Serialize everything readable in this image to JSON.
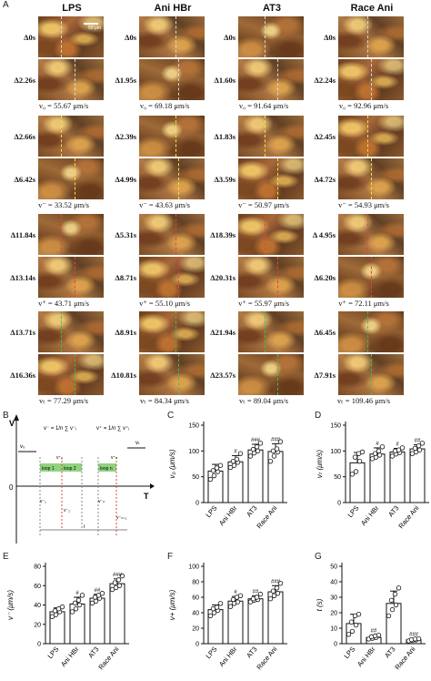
{
  "panel_letters": {
    "A": "A",
    "B": "B",
    "C": "C",
    "D": "D",
    "E": "E",
    "F": "F",
    "G": "G"
  },
  "columns": [
    "LPS",
    "Ani HBr",
    "AT3",
    "Race Ani"
  ],
  "scale_bar": "50 μm",
  "blocks": [
    {
      "times": [
        [
          "Δ0s",
          "Δ2.26s"
        ],
        [
          "Δ0s",
          "Δ1.95s"
        ],
        [
          "Δ0s",
          "Δ1.60s"
        ],
        [
          "Δ0s",
          "Δ2.24s"
        ]
      ],
      "velocity": [
        "v₀ = 55.67 μm/s",
        "v₀ = 69.18 μm/s",
        "v₀ = 91.64 μm/s",
        "v₀ = 92.96 μm/s"
      ],
      "mark_color": "#d9d9d9"
    },
    {
      "times": [
        [
          "Δ2.66s",
          "Δ6.42s"
        ],
        [
          "Δ2.39s",
          "Δ4.99s"
        ],
        [
          "Δ1.83s",
          "Δ3.59s"
        ],
        [
          "Δ2.45s",
          "Δ4.72s"
        ]
      ],
      "velocity": [
        "v⁻ = 33.52 μm/s",
        "v⁻ = 43.63 μm/s",
        "v⁻ = 50.97 μm/s",
        "v⁻ = 54.93 μm/s"
      ],
      "mark_color": "#f2e24a"
    },
    {
      "times": [
        [
          "Δ11.84s",
          "Δ13.14s"
        ],
        [
          "Δ5.31s",
          "Δ8.71s"
        ],
        [
          "Δ18.39s",
          "Δ20.31s"
        ],
        [
          "Δ 4.95s",
          "Δ6.20s"
        ]
      ],
      "velocity": [
        "v⁺ = 43.71 μm/s",
        "v⁺ = 55.10 μm/s",
        "v⁺ = 55.97 μm/s",
        "v⁺ = 72.11 μm/s"
      ],
      "mark_color": "#e04545"
    },
    {
      "times": [
        [
          "Δ13.71s",
          "Δ16.36s"
        ],
        [
          "Δ8.91s",
          "Δ10.81s"
        ],
        [
          "Δ21.94s",
          "Δ23.57s"
        ],
        [
          "Δ6.45s",
          "Δ7.91s"
        ]
      ],
      "velocity": [
        "vₜ = 77.29 μm/s",
        "vₜ = 84.34 μm/s",
        "vₜ = 89.04 μm/s",
        "vₜ = 109.46 μm/s"
      ],
      "mark_color": "#3fbf4f"
    }
  ],
  "schematic": {
    "y_axis": "V",
    "x_axis": "T",
    "origin": "0",
    "v0": "v₀",
    "vt": "vₜ",
    "vminus_formula": "v⁻ = 1/n ∑ v⁻ᵢ",
    "vplus_formula": "v⁺ = 1/n ∑ v⁺ᵢ",
    "loops": [
      "loop 1",
      "loop 2",
      "loop n"
    ],
    "small_labels": [
      "v⁺₁",
      "v⁺ₙ",
      "v⁻₁",
      "v⁻₂",
      "v⁻ₙ",
      "v⁻ₙ₊₁",
      "t"
    ]
  },
  "charts": [
    {
      "id": "C",
      "ylabel": "v₀ (μm/s)",
      "ymax": 150,
      "yticks": [
        0,
        50,
        100,
        150
      ],
      "means": [
        61,
        79,
        102,
        99
      ],
      "sd": [
        13,
        12,
        11,
        15
      ],
      "points": [
        [
          45,
          52,
          60,
          62,
          67,
          72
        ],
        [
          68,
          72,
          78,
          80,
          84,
          95
        ],
        [
          90,
          96,
          100,
          103,
          108,
          115
        ],
        [
          80,
          90,
          98,
          100,
          104,
          118
        ]
      ],
      "sig": [
        "",
        "#",
        "###",
        "###"
      ]
    },
    {
      "id": "D",
      "ylabel": "vₜ (μm/s)",
      "ymax": 150,
      "yticks": [
        0,
        50,
        100,
        150
      ],
      "means": [
        77,
        94,
        98,
        104
      ],
      "sd": [
        20,
        12,
        7,
        8
      ],
      "points": [
        [
          55,
          60,
          80,
          88,
          95,
          98
        ],
        [
          85,
          88,
          92,
          95,
          100,
          108
        ],
        [
          90,
          94,
          97,
          100,
          102,
          106
        ],
        [
          95,
          98,
          102,
          105,
          110,
          115
        ]
      ],
      "sig": [
        "",
        "#",
        "#",
        "##"
      ]
    },
    {
      "id": "E",
      "ylabel": "v⁻ (μm/s)",
      "ymax": 80,
      "yticks": [
        0,
        20,
        40,
        60,
        80
      ],
      "means": [
        33,
        41,
        47,
        62
      ],
      "sd": [
        4,
        7,
        4,
        5
      ],
      "points": [
        [
          28,
          30,
          33,
          34,
          36,
          38
        ],
        [
          33,
          36,
          40,
          42,
          45,
          50
        ],
        [
          42,
          44,
          47,
          48,
          50,
          52
        ],
        [
          56,
          58,
          60,
          63,
          66,
          70
        ]
      ],
      "sig": [
        "",
        "#",
        "##",
        "###"
      ]
    },
    {
      "id": "F",
      "ylabel": "v+ (μm/s)",
      "ymax": 100,
      "yticks": [
        0,
        20,
        40,
        60,
        80,
        100
      ],
      "means": [
        44,
        55,
        58,
        67
      ],
      "sd": [
        6,
        6,
        4,
        8
      ],
      "points": [
        [
          36,
          40,
          43,
          45,
          47,
          52
        ],
        [
          48,
          52,
          54,
          57,
          60,
          62
        ],
        [
          54,
          56,
          57,
          58,
          60,
          64
        ],
        [
          58,
          62,
          65,
          68,
          72,
          78
        ]
      ],
      "sig": [
        "",
        "#",
        "##",
        "###"
      ]
    },
    {
      "id": "G",
      "ylabel": "t (s)",
      "ymax": 50,
      "yticks": [
        0,
        10,
        20,
        30,
        40,
        50
      ],
      "means": [
        13,
        4,
        26,
        2.5
      ],
      "sd": [
        6,
        1.5,
        8,
        0.8
      ],
      "points": [
        [
          6,
          8,
          12,
          14,
          18,
          19
        ],
        [
          3,
          3.5,
          4,
          4.5,
          5,
          5.5
        ],
        [
          18,
          22,
          25,
          28,
          32,
          36
        ],
        [
          1.8,
          2,
          2.4,
          2.6,
          3,
          3.2
        ]
      ],
      "sig": [
        "",
        "##",
        "",
        "###"
      ]
    }
  ]
}
